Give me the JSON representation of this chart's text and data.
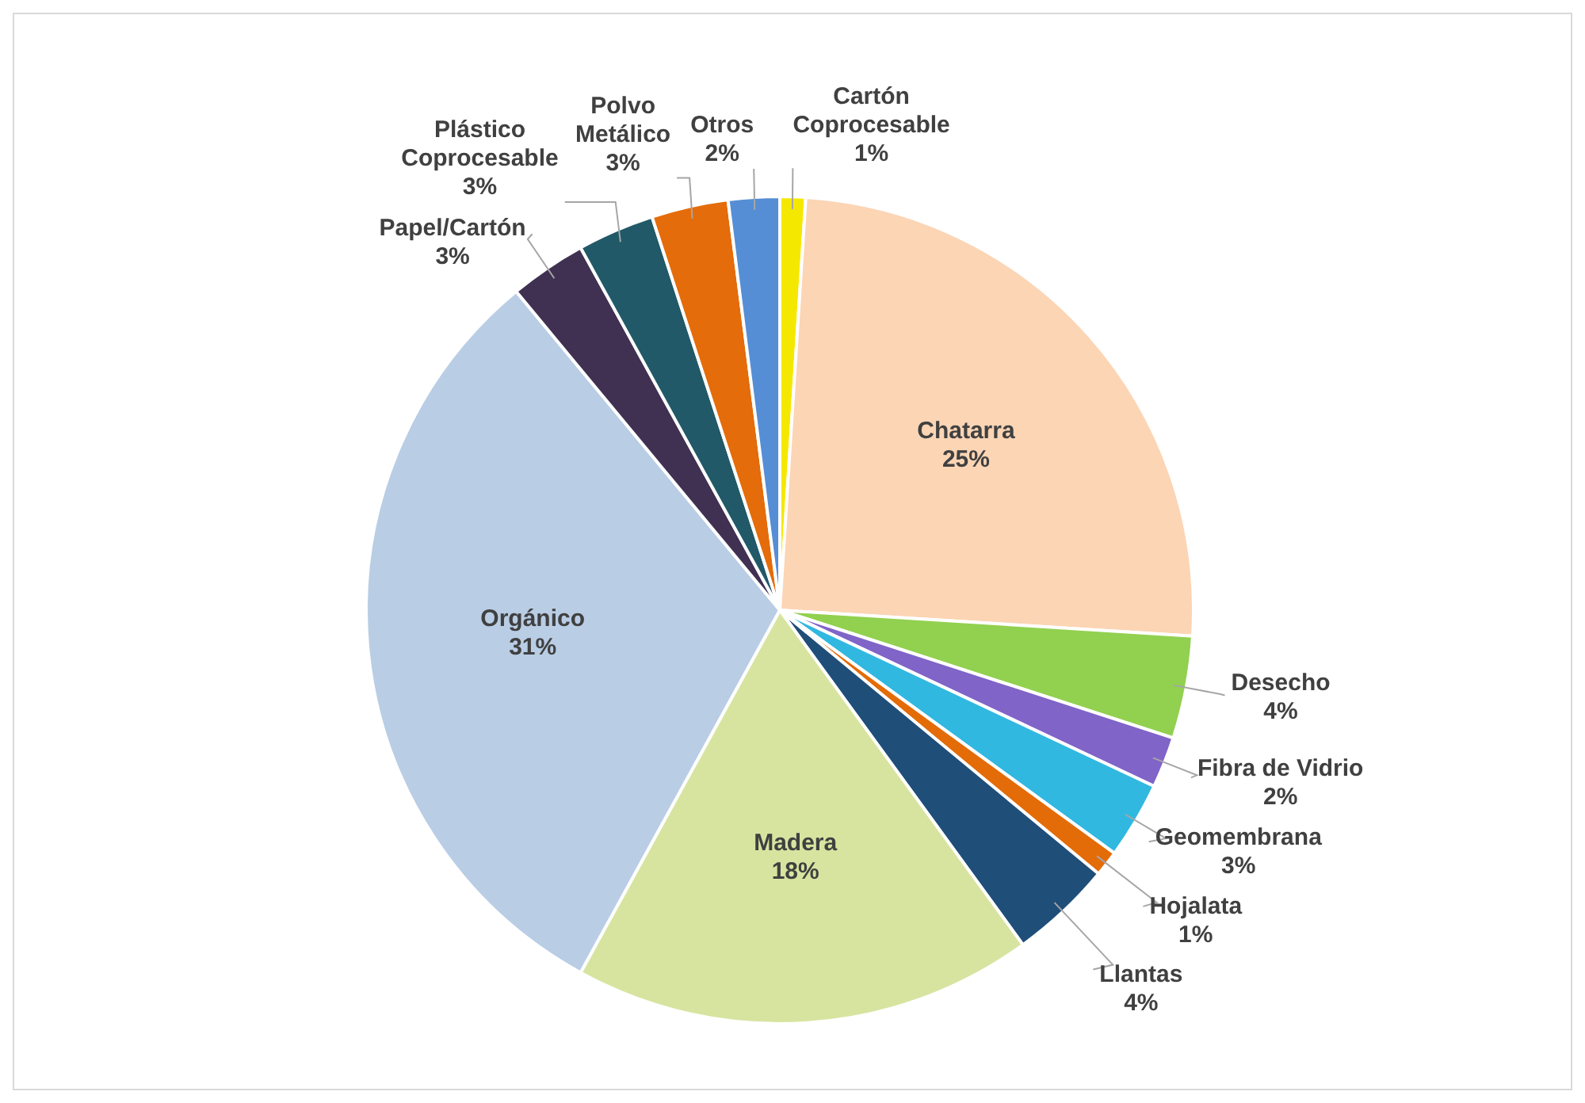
{
  "chart_data": {
    "type": "pie",
    "categories": [
      "Cartón Coprocesable",
      "Chatarra",
      "Desecho",
      "Fibra de Vidrio",
      "Geomembrana",
      "Hojalata",
      "Llantas",
      "Madera",
      "Orgánico",
      "Papel/Cartón",
      "Plástico Coprocesable",
      "Polvo Metálico",
      "Otros"
    ],
    "values": [
      1,
      25,
      4,
      2,
      3,
      1,
      4,
      18,
      31,
      3,
      3,
      3,
      2
    ],
    "value_labels": [
      "1%",
      "25%",
      "4%",
      "2%",
      "3%",
      "1%",
      "4%",
      "18%",
      "31%",
      "3%",
      "3%",
      "3%",
      "2%"
    ],
    "colors": [
      "#f5e800",
      "#fcd5b5",
      "#92d050",
      "#8064c8",
      "#31b8e0",
      "#e36c09",
      "#1f4e79",
      "#d7e4a0",
      "#b9cde5",
      "#403152",
      "#215968",
      "#e46c0a",
      "#558ed5"
    ],
    "legend": false
  }
}
